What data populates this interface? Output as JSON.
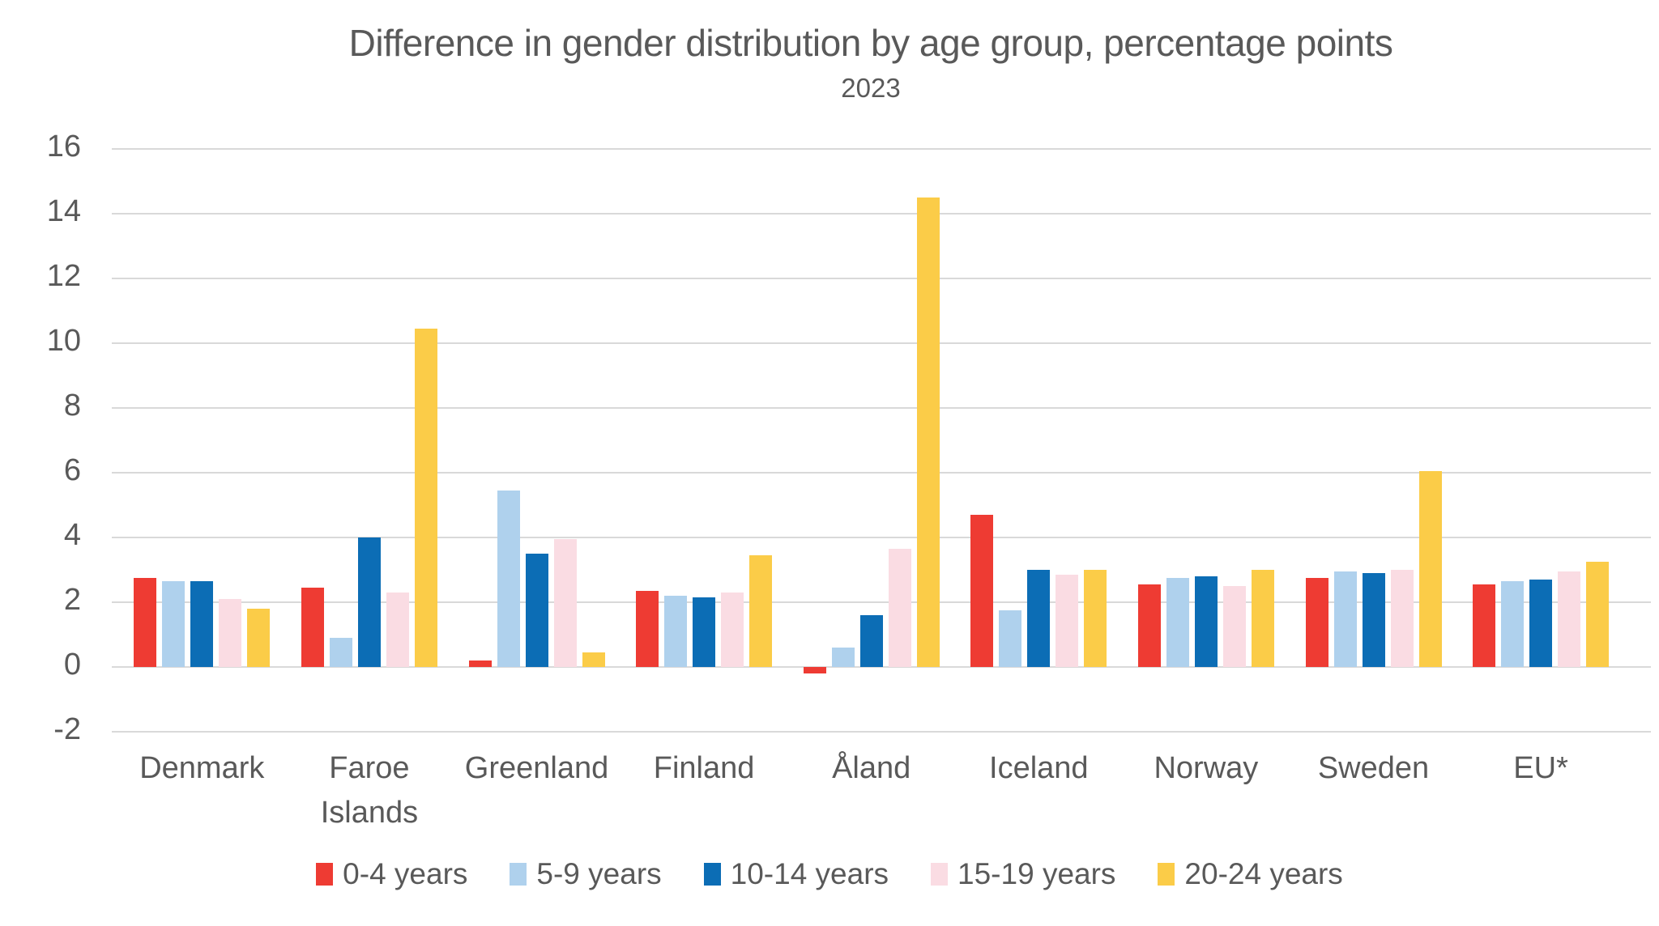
{
  "chart_data": {
    "type": "bar",
    "title": "Difference in gender distribution by age group, percentage points",
    "subtitle": "2023",
    "categories": [
      "Denmark",
      "Faroe Islands",
      "Greenland",
      "Finland",
      "Åland",
      "Iceland",
      "Norway",
      "Sweden",
      "EU*"
    ],
    "series": [
      {
        "name": "0-4 years",
        "color": "#EE3B33",
        "values": [
          2.75,
          2.45,
          0.2,
          2.35,
          -0.2,
          4.7,
          2.55,
          2.75,
          2.55
        ]
      },
      {
        "name": "5-9 years",
        "color": "#AFD1ED",
        "values": [
          2.65,
          0.9,
          5.45,
          2.2,
          0.6,
          1.75,
          2.75,
          2.95,
          2.65
        ]
      },
      {
        "name": "10-14 years",
        "color": "#0C6DB5",
        "values": [
          2.65,
          4.0,
          3.5,
          2.15,
          1.6,
          3.0,
          2.8,
          2.9,
          2.7
        ]
      },
      {
        "name": "15-19 years",
        "color": "#FADCE3",
        "values": [
          2.1,
          2.3,
          3.95,
          2.3,
          3.65,
          2.85,
          2.5,
          3.0,
          2.95
        ]
      },
      {
        "name": "20-24 years",
        "color": "#FBCC48",
        "values": [
          1.8,
          10.45,
          0.45,
          3.45,
          14.5,
          3.0,
          3.0,
          6.05,
          3.25
        ]
      }
    ],
    "ylim": [
      -2,
      16
    ],
    "ytick_step": 2,
    "grid": true,
    "gridline_color": "#D9D9D9",
    "text_color": "#595959",
    "legend_position": "bottom"
  }
}
